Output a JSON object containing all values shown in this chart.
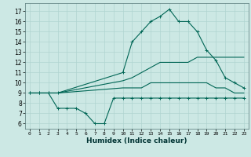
{
  "xlabel": "Humidex (Indice chaleur)",
  "background_color": "#cce8e4",
  "grid_color": "#b0d4d0",
  "line_color": "#006655",
  "xlim": [
    -0.5,
    23.5
  ],
  "ylim": [
    5.5,
    17.8
  ],
  "xticks": [
    0,
    1,
    2,
    3,
    4,
    5,
    6,
    7,
    8,
    9,
    10,
    11,
    12,
    13,
    14,
    15,
    16,
    17,
    18,
    19,
    20,
    21,
    22,
    23
  ],
  "yticks": [
    6,
    7,
    8,
    9,
    10,
    11,
    12,
    13,
    14,
    15,
    16,
    17
  ],
  "series": {
    "max": [
      [
        0,
        9.0
      ],
      [
        1,
        9.0
      ],
      [
        2,
        9.0
      ],
      [
        3,
        9.0
      ],
      [
        10,
        11.0
      ],
      [
        11,
        14.0
      ],
      [
        12,
        15.0
      ],
      [
        13,
        16.0
      ],
      [
        14,
        16.5
      ],
      [
        15,
        17.2
      ],
      [
        16,
        16.0
      ],
      [
        17,
        16.0
      ],
      [
        18,
        15.0
      ],
      [
        19,
        13.2
      ],
      [
        20,
        12.2
      ],
      [
        21,
        10.5
      ],
      [
        22,
        10.0
      ],
      [
        23,
        9.5
      ]
    ],
    "mean_hi": [
      [
        0,
        9.0
      ],
      [
        1,
        9.0
      ],
      [
        2,
        9.0
      ],
      [
        3,
        9.0
      ],
      [
        10,
        10.2
      ],
      [
        11,
        10.5
      ],
      [
        12,
        11.0
      ],
      [
        13,
        11.5
      ],
      [
        14,
        12.0
      ],
      [
        15,
        12.0
      ],
      [
        16,
        12.0
      ],
      [
        17,
        12.0
      ],
      [
        18,
        12.5
      ],
      [
        19,
        12.5
      ],
      [
        20,
        12.5
      ],
      [
        21,
        12.5
      ],
      [
        22,
        12.5
      ],
      [
        23,
        12.5
      ]
    ],
    "mean_lo": [
      [
        0,
        9.0
      ],
      [
        1,
        9.0
      ],
      [
        2,
        9.0
      ],
      [
        3,
        9.0
      ],
      [
        10,
        9.5
      ],
      [
        11,
        9.5
      ],
      [
        12,
        9.5
      ],
      [
        13,
        10.0
      ],
      [
        14,
        10.0
      ],
      [
        15,
        10.0
      ],
      [
        16,
        10.0
      ],
      [
        17,
        10.0
      ],
      [
        18,
        10.0
      ],
      [
        19,
        10.0
      ],
      [
        20,
        9.5
      ],
      [
        21,
        9.5
      ],
      [
        22,
        9.0
      ],
      [
        23,
        9.0
      ]
    ],
    "min": [
      [
        0,
        9.0
      ],
      [
        1,
        9.0
      ],
      [
        2,
        9.0
      ],
      [
        3,
        7.5
      ],
      [
        4,
        7.5
      ],
      [
        5,
        7.5
      ],
      [
        6,
        7.0
      ],
      [
        7,
        6.0
      ],
      [
        8,
        6.0
      ],
      [
        9,
        8.5
      ],
      [
        10,
        8.5
      ],
      [
        11,
        8.5
      ],
      [
        12,
        8.5
      ],
      [
        13,
        8.5
      ],
      [
        14,
        8.5
      ],
      [
        15,
        8.5
      ],
      [
        16,
        8.5
      ],
      [
        17,
        8.5
      ],
      [
        18,
        8.5
      ],
      [
        19,
        8.5
      ],
      [
        20,
        8.5
      ],
      [
        21,
        8.5
      ],
      [
        22,
        8.5
      ],
      [
        23,
        8.5
      ]
    ]
  }
}
